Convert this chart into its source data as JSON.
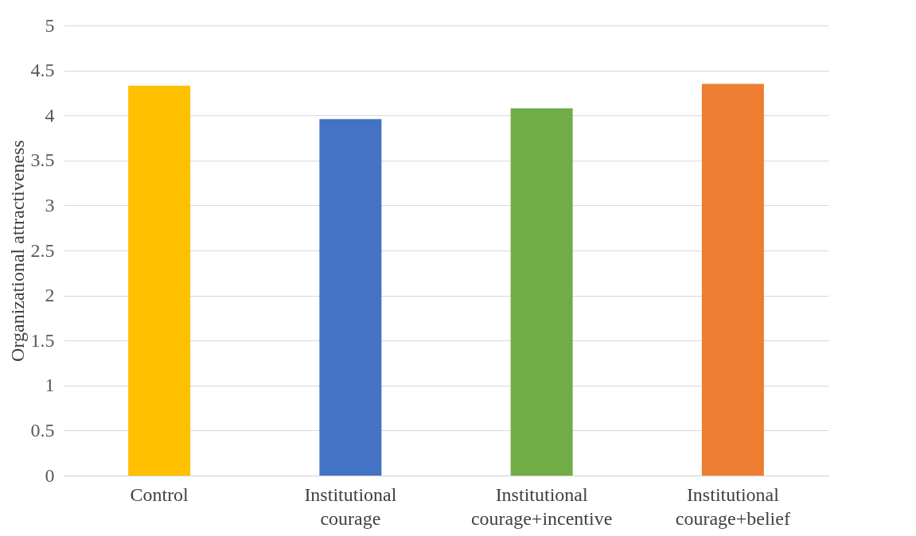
{
  "chart_data": {
    "type": "bar",
    "ylabel": "Organizational attractiveness",
    "categories": [
      "Control",
      "Institutional\ncourage",
      "Institutional\ncourage+incentive",
      "Institutional\ncourage+belief"
    ],
    "values": [
      4.33,
      3.96,
      4.08,
      4.35
    ],
    "colors": [
      "#ffc000",
      "#4472c4",
      "#70ad47",
      "#ed7d31"
    ],
    "ylim": [
      0,
      5
    ],
    "yticks": [
      0,
      0.5,
      1,
      1.5,
      2,
      2.5,
      3,
      3.5,
      4,
      4.5,
      5
    ],
    "grid": "y"
  }
}
